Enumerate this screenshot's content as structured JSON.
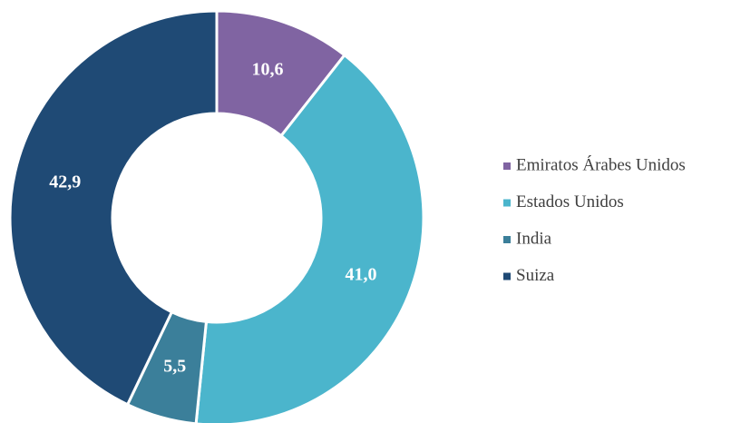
{
  "chart_data": {
    "type": "donut",
    "categories": [
      "Emiratos Árabes Unidos",
      "Estados Unidos",
      "India",
      "Suiza"
    ],
    "values": [
      10.6,
      41.0,
      5.5,
      42.9
    ],
    "value_labels": [
      "10,6",
      "41,0",
      "5,5",
      "42,9"
    ],
    "colors": [
      "#8064a2",
      "#4bb5cc",
      "#3b7f9a",
      "#1f4a75"
    ],
    "legend": "right"
  }
}
